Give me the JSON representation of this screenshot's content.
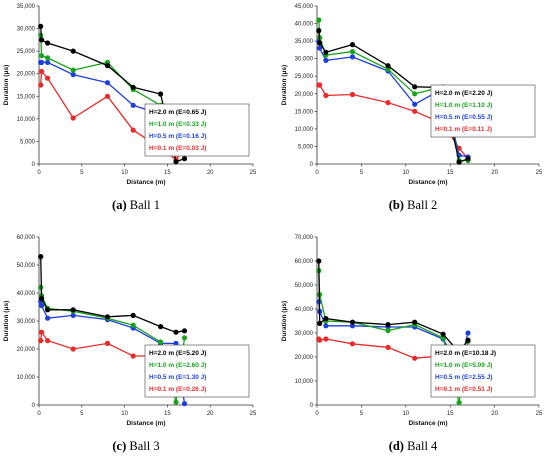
{
  "series_colors": {
    "H=2.0": "#000000",
    "H=1.0": "#18a31c",
    "H=0.5": "#1d3fe0",
    "H=0.1": "#ea2a2a"
  },
  "chart_data": [
    {
      "type": "line",
      "caption_tag": "(a)",
      "caption_text": "Ball 1",
      "xlabel": "Distance (m)",
      "ylabel": "Duration (μs)",
      "xlim": [
        0,
        25
      ],
      "ylim": [
        0,
        35000
      ],
      "xticks": [
        0,
        5,
        10,
        15,
        20,
        25
      ],
      "yticks": [
        0,
        5000,
        10000,
        15000,
        20000,
        25000,
        30000,
        35000
      ],
      "ytick_labels": [
        "0",
        "5,000",
        "10,000",
        "15,000",
        "20,000",
        "25,000",
        "30,000",
        "35,000"
      ],
      "legend_location": "bottom-right",
      "series": [
        {
          "name": "H=2.0 m (E=0.65 J)",
          "color": "#000000",
          "x": [
            0.2,
            0.3,
            1,
            4,
            8,
            11,
            14.2,
            16,
            17
          ],
          "y": [
            30500,
            27500,
            26800,
            25000,
            21800,
            17000,
            15500,
            500,
            1200
          ]
        },
        {
          "name": "H=1.0 m (E=0.33 J)",
          "color": "#18a31c",
          "x": [
            0.2,
            0.3,
            1,
            4,
            8,
            11,
            14.2,
            16,
            17
          ],
          "y": [
            28500,
            24000,
            23500,
            20800,
            22500,
            16500,
            13000,
            4000,
            11500
          ]
        },
        {
          "name": "H=0.5 m (E=0.16 J)",
          "color": "#1d3fe0",
          "x": [
            0.2,
            0.3,
            1,
            4,
            8,
            11,
            14.2,
            16,
            17
          ],
          "y": [
            22500,
            22500,
            22500,
            19800,
            18000,
            13000,
            11000,
            12000,
            8000
          ]
        },
        {
          "name": "H=0.1 m (E=0.03 J)",
          "color": "#ea2a2a",
          "x": [
            0.2,
            0.3,
            1,
            4,
            8,
            11,
            14.2,
            16,
            17
          ],
          "y": [
            17500,
            20500,
            19000,
            10200,
            15000,
            7500,
            3500,
            1000,
            3500
          ]
        }
      ]
    },
    {
      "type": "line",
      "caption_tag": "(b)",
      "caption_text": "Ball 2",
      "xlabel": "Distance (m)",
      "ylabel": "Duration (μs)",
      "xlim": [
        0,
        25
      ],
      "ylim": [
        0,
        45000
      ],
      "xticks": [
        0,
        5,
        10,
        15,
        20,
        25
      ],
      "yticks": [
        0,
        5000,
        10000,
        15000,
        20000,
        25000,
        30000,
        35000,
        40000,
        45000
      ],
      "ytick_labels": [
        "0",
        "5,000",
        "10,000",
        "15,000",
        "20,000",
        "25,000",
        "30,000",
        "35,000",
        "40,000",
        "45,000"
      ],
      "legend_location": "right",
      "series": [
        {
          "name": "H=2.0 m (E=2.20 J)",
          "color": "#000000",
          "x": [
            0.2,
            0.3,
            1,
            4,
            8,
            11,
            14.2,
            16,
            17
          ],
          "y": [
            38000,
            34500,
            31800,
            34000,
            28000,
            22000,
            21800,
            500,
            1500
          ]
        },
        {
          "name": "H=1.0 m (E=1.10 J)",
          "color": "#18a31c",
          "x": [
            0.2,
            0.3,
            1,
            4,
            8,
            11,
            14.2,
            16,
            17
          ],
          "y": [
            41000,
            36000,
            31000,
            32000,
            27000,
            20000,
            22000,
            1000,
            1000
          ]
        },
        {
          "name": "H=0.5 m (E=0.55 J)",
          "color": "#1d3fe0",
          "x": [
            0.2,
            0.3,
            1,
            4,
            8,
            11,
            14.2,
            16,
            17
          ],
          "y": [
            35000,
            33000,
            29500,
            30500,
            26500,
            17000,
            21500,
            2500,
            2000
          ]
        },
        {
          "name": "H=0.1 m (E=0.11 J)",
          "color": "#ea2a2a",
          "x": [
            0.2,
            0.3,
            1,
            4,
            8,
            11,
            14.2,
            16,
            17
          ],
          "y": [
            22500,
            22500,
            19500,
            19800,
            17500,
            15000,
            11500,
            4500,
            1500
          ]
        }
      ]
    },
    {
      "type": "line",
      "caption_tag": "(c)",
      "caption_text": "Ball 3",
      "xlabel": "Distance (m)",
      "ylabel": "Duration (μs)",
      "xlim": [
        0,
        25
      ],
      "ylim": [
        0,
        60000
      ],
      "xticks": [
        0,
        5,
        10,
        15,
        20,
        25
      ],
      "yticks": [
        0,
        10000,
        20000,
        30000,
        40000,
        50000,
        60000
      ],
      "ytick_labels": [
        "0",
        "10,000",
        "20,000",
        "30,000",
        "40,000",
        "50,000",
        "60,000"
      ],
      "legend_location": "bottom-right",
      "series": [
        {
          "name": "H=2.0 m (E=5.20 J)",
          "color": "#000000",
          "x": [
            0.2,
            0.3,
            1,
            4,
            8,
            11,
            14.2,
            16,
            17
          ],
          "y": [
            53000,
            38000,
            34000,
            34000,
            31500,
            32000,
            28000,
            26000,
            26500
          ]
        },
        {
          "name": "H=1.0 m (E=2.60 J)",
          "color": "#18a31c",
          "x": [
            0.2,
            0.3,
            1,
            4,
            8,
            11,
            14.2,
            16,
            17
          ],
          "y": [
            42000,
            39000,
            34500,
            33500,
            31000,
            28500,
            22500,
            1000,
            24000
          ]
        },
        {
          "name": "H=0.5 m (E=1.30 J)",
          "color": "#1d3fe0",
          "x": [
            0.2,
            0.3,
            1,
            4,
            8,
            11,
            14.2,
            16,
            17
          ],
          "y": [
            37000,
            35500,
            31000,
            32000,
            30500,
            27500,
            22000,
            22000,
            500
          ]
        },
        {
          "name": "H=0.1 m (E=0.26 J)",
          "color": "#ea2a2a",
          "x": [
            0.2,
            0.3,
            1,
            4,
            8,
            11,
            14.2,
            16,
            17
          ],
          "y": [
            23000,
            26000,
            23000,
            20000,
            22000,
            17500,
            17500,
            13000,
            13500
          ]
        }
      ]
    },
    {
      "type": "line",
      "caption_tag": "(d)",
      "caption_text": "Ball 4",
      "xlabel": "Distance (m)",
      "ylabel": "Duration (μs)",
      "xlim": [
        0,
        25
      ],
      "ylim": [
        0,
        70000
      ],
      "xticks": [
        0,
        5,
        10,
        15,
        20,
        25
      ],
      "yticks": [
        0,
        10000,
        20000,
        30000,
        40000,
        50000,
        60000,
        70000
      ],
      "ytick_labels": [
        "0",
        "10,000",
        "20,000",
        "30,000",
        "40,000",
        "50,000",
        "60,000",
        "70,000"
      ],
      "legend_location": "bottom-right",
      "series": [
        {
          "name": "H=2.0 m (E=10.18 J)",
          "color": "#000000",
          "x": [
            0.2,
            0.3,
            1,
            4,
            8,
            11,
            14.2,
            16,
            17
          ],
          "y": [
            60000,
            34000,
            36000,
            34500,
            33500,
            34500,
            29500,
            22000,
            27000
          ]
        },
        {
          "name": "H=1.0 m (E=5.09 J)",
          "color": "#18a31c",
          "x": [
            0.2,
            0.3,
            1,
            4,
            8,
            11,
            14.2,
            16,
            17
          ],
          "y": [
            56000,
            46000,
            35000,
            34500,
            31000,
            33500,
            28000,
            1000,
            26500
          ]
        },
        {
          "name": "H=0.5 m (E=2.55 J)",
          "color": "#1d3fe0",
          "x": [
            0.2,
            0.3,
            1,
            4,
            8,
            11,
            14.2,
            16,
            17
          ],
          "y": [
            43000,
            39000,
            33000,
            33000,
            32500,
            32500,
            27500,
            16000,
            30000
          ]
        },
        {
          "name": "H=0.1 m (E=0.51 J)",
          "color": "#ea2a2a",
          "x": [
            0.2,
            0.3,
            1,
            4,
            8,
            11,
            14.2,
            16,
            17
          ],
          "y": [
            27500,
            27000,
            27500,
            25500,
            24000,
            19500,
            20500,
            15500,
            16500
          ]
        }
      ]
    }
  ]
}
